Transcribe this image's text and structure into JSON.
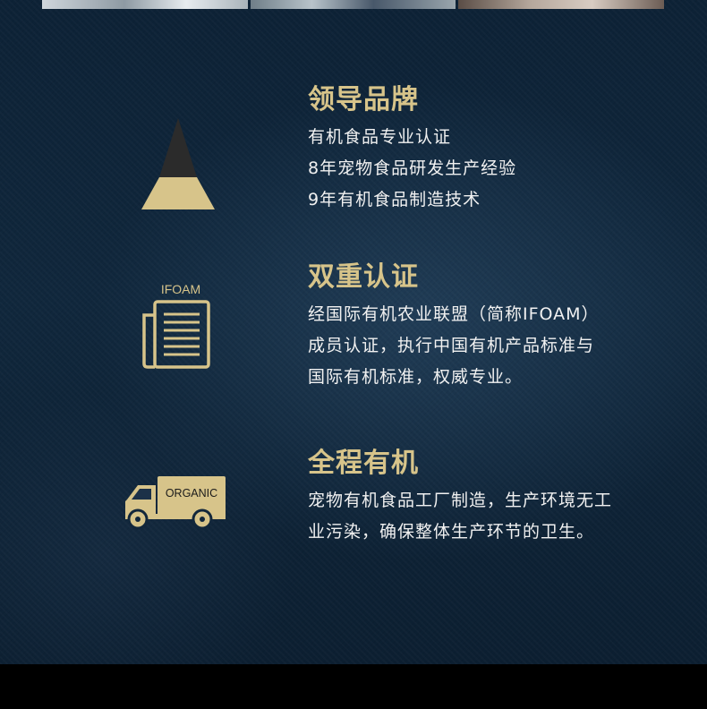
{
  "colors": {
    "accent_gold": "#d7c48a",
    "background_navy": "#0f2439",
    "text_white": "#f1f1f1"
  },
  "photo_strip": {
    "photos": [
      "photo",
      "photo",
      "photo"
    ]
  },
  "features": [
    {
      "icon": "pyramid-icon",
      "title": "领导品牌",
      "lines": [
        "有机食品专业认证",
        "8年宠物食品研发生产经验",
        "9年有机食品制造技术"
      ]
    },
    {
      "icon": "document-icon",
      "icon_label": "IFOAM",
      "title": "双重认证",
      "lines": [
        "经国际有机农业联盟（简称IFOAM）",
        "成员认证，执行中国有机产品标准与",
        "国际有机标准，权威专业。"
      ]
    },
    {
      "icon": "truck-icon",
      "icon_label": "ORGANIC",
      "title": "全程有机",
      "lines": [
        "宠物有机食品工厂制造，生产环境无工",
        "业污染，确保整体生产环节的卫生。"
      ]
    }
  ]
}
